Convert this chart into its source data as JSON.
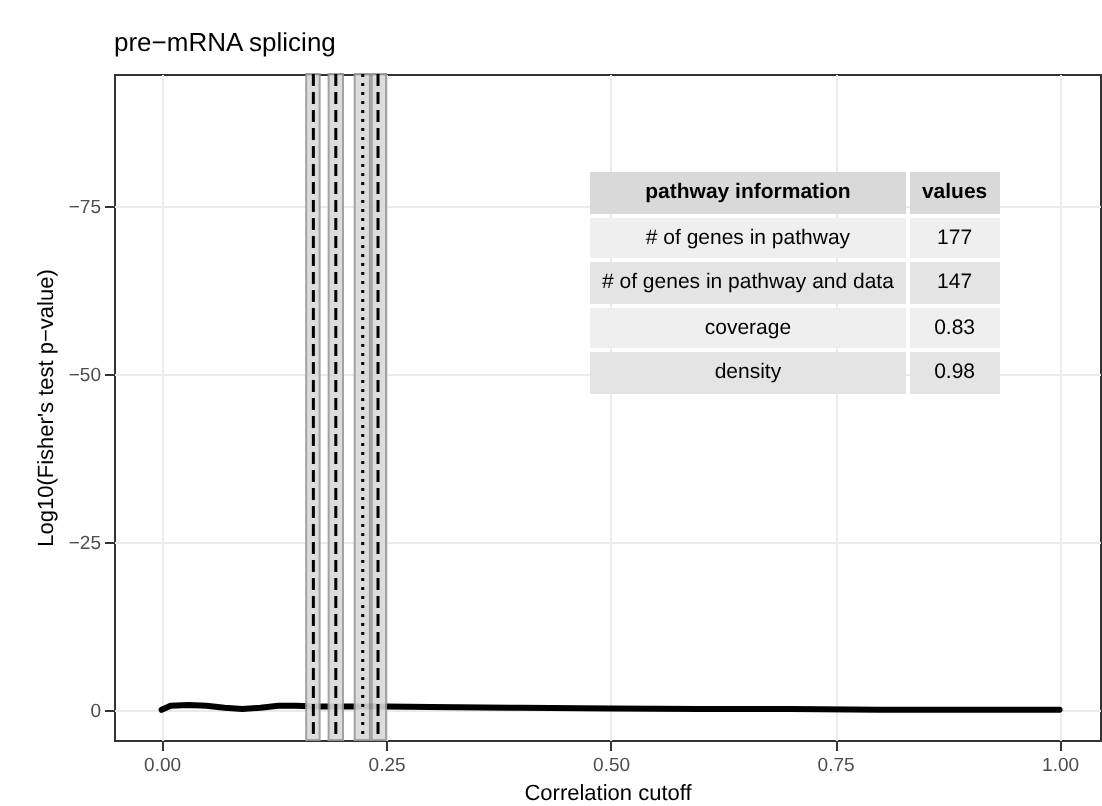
{
  "chart_data": {
    "type": "line",
    "title": "pre−mRNA splicing",
    "xlabel": "Correlation cutoff",
    "ylabel": "Log10(Fisher's test p−value)",
    "x": [
      0,
      0.01,
      0.03,
      0.05,
      0.07,
      0.09,
      0.11,
      0.13,
      0.15,
      0.17,
      0.2,
      0.25,
      0.3,
      0.4,
      0.5,
      0.6,
      0.7,
      0.8,
      0.9,
      1.0
    ],
    "series": [
      {
        "color": "#000000",
        "values": [
          0,
          -0.6,
          -0.7,
          -0.6,
          -0.3,
          -0.1,
          -0.3,
          -0.6,
          -0.6,
          -0.5,
          -0.5,
          -0.5,
          -0.4,
          -0.3,
          -0.2,
          -0.1,
          -0.1,
          0.0,
          0.0,
          0.0
        ]
      }
    ],
    "xlim": [
      -0.053,
      1.045
    ],
    "ylim": [
      4.5,
      -94.6
    ],
    "xticks": [
      {
        "value": 0,
        "label": "0.00"
      },
      {
        "value": 0.25,
        "label": "0.25"
      },
      {
        "value": 0.5,
        "label": "0.50"
      },
      {
        "value": 0.75,
        "label": "0.75"
      },
      {
        "value": 1,
        "label": "1.00"
      }
    ],
    "yticks": [
      {
        "value": 0,
        "label": "0"
      },
      {
        "value": -25,
        "label": "−25"
      },
      {
        "value": -50,
        "label": "−50"
      },
      {
        "value": -75,
        "label": "−75"
      }
    ],
    "grid": true,
    "bands": [
      {
        "axis": "x",
        "from": 0.161,
        "to": 0.176,
        "color": "#d9d9d9"
      },
      {
        "axis": "x",
        "from": 0.186,
        "to": 0.202,
        "color": "#d9d9d9"
      },
      {
        "axis": "x",
        "from": 0.215,
        "to": 0.232,
        "color": "#d9d9d9"
      },
      {
        "axis": "x",
        "from": 0.234,
        "to": 0.25,
        "color": "#d9d9d9"
      }
    ],
    "ref_lines": [
      {
        "axis": "x",
        "value": 0.169,
        "color": "#000000",
        "line_style": "dashed"
      },
      {
        "axis": "x",
        "value": 0.194,
        "color": "#000000",
        "line_style": "dashed"
      },
      {
        "axis": "x",
        "value": 0.224,
        "color": "#000000",
        "line_style": "dotted"
      },
      {
        "axis": "x",
        "value": 0.241,
        "color": "#000000",
        "line_style": "dashed"
      }
    ],
    "annotations": [
      "pathway information",
      "values",
      "# of genes in pathway",
      "177",
      "# of genes in pathway and data",
      "147",
      "coverage",
      "0.83",
      "density",
      "0.98"
    ]
  }
}
